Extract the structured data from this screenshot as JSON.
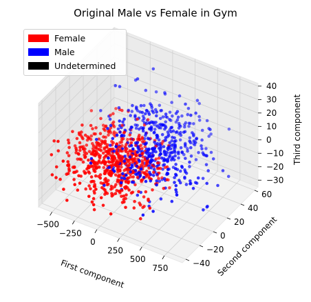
{
  "chart_data": {
    "type": "scatter",
    "projection": "3d",
    "title": "Original Male vs Female in Gym",
    "xlabel": "First component",
    "ylabel": "Second component",
    "zlabel": "Third component",
    "xlim": [
      -650,
      950
    ],
    "ylim": [
      -45,
      65
    ],
    "zlim": [
      -35,
      42
    ],
    "xticks": [
      "−500",
      "−250",
      "0",
      "250",
      "500",
      "750"
    ],
    "xtick_values": [
      -500,
      -250,
      0,
      250,
      500,
      750
    ],
    "yticks": [
      "−40",
      "−20",
      "0",
      "20",
      "40",
      "60"
    ],
    "ytick_values": [
      -40,
      -20,
      0,
      20,
      40,
      60
    ],
    "zticks": [
      "−30",
      "−20",
      "−10",
      "0",
      "10",
      "20",
      "30",
      "40"
    ],
    "ztick_values": [
      -30,
      -20,
      -10,
      0,
      10,
      20,
      30,
      40
    ],
    "grid": true,
    "legend_position": "upper-left",
    "series": [
      {
        "name": "Female",
        "color": "#ff0000",
        "distribution": {
          "count": 620,
          "x_mean": -120,
          "x_sd": 230,
          "y_mean": -5,
          "y_sd": 15,
          "z_mean": -8,
          "z_sd": 10
        }
      },
      {
        "name": "Male",
        "color": "#0000ff",
        "distribution": {
          "count": 480,
          "x_mean": 230,
          "x_sd": 260,
          "y_mean": 15,
          "y_sd": 20,
          "z_mean": 2,
          "z_sd": 13
        }
      },
      {
        "name": "Undetermined",
        "color": "#000000",
        "distribution": {
          "count": 0
        }
      }
    ]
  }
}
